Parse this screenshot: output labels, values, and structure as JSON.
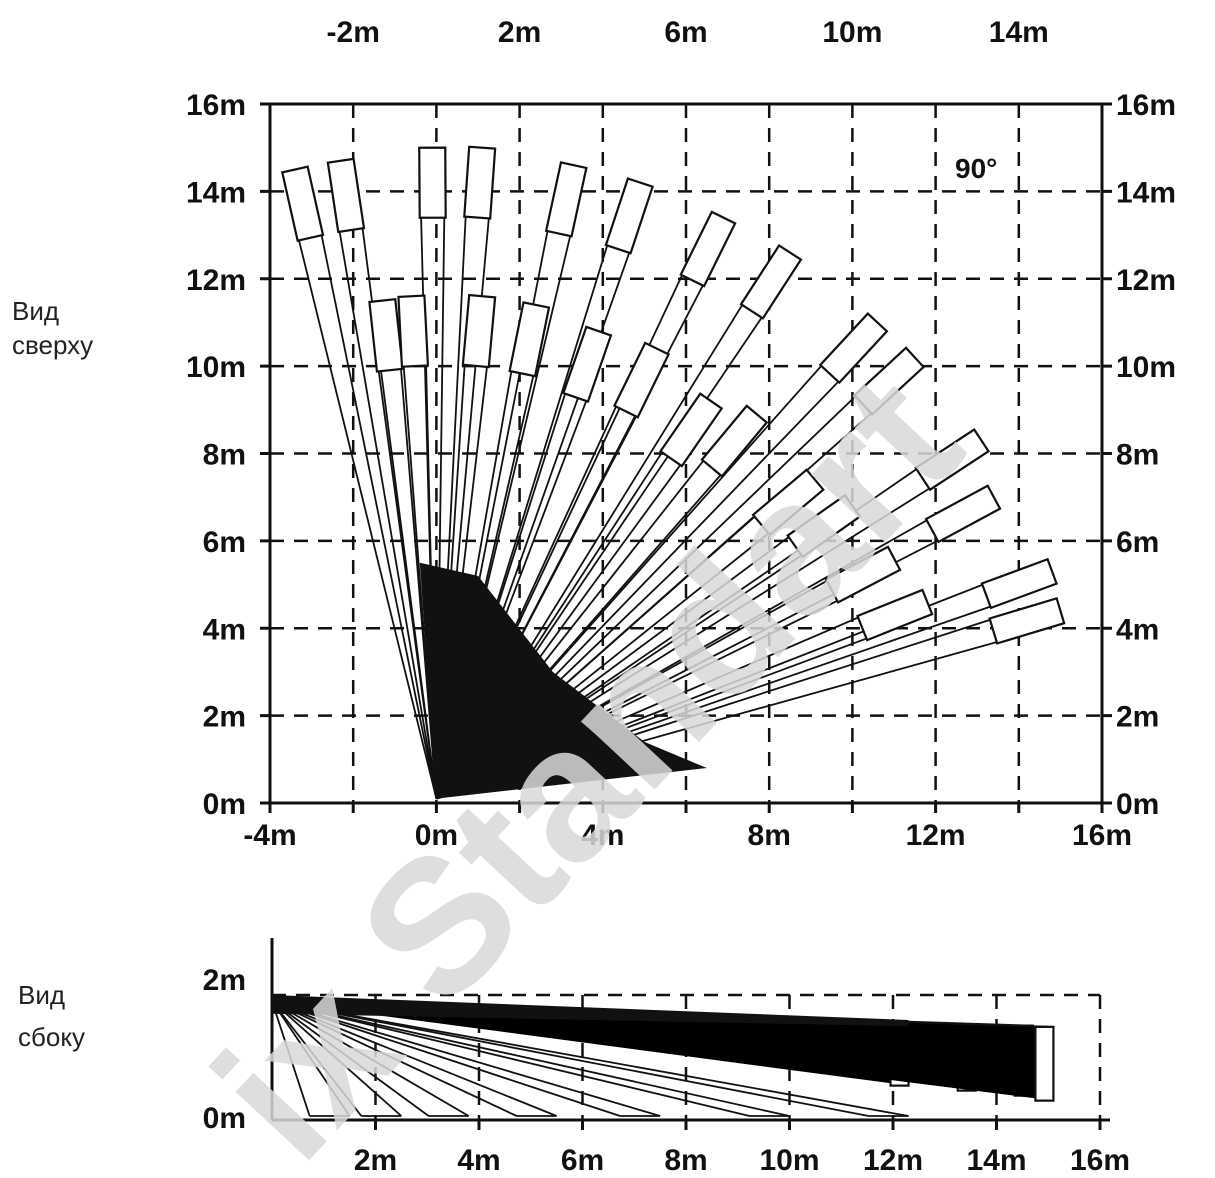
{
  "labels": {
    "top_view": [
      "Вид",
      "сверху"
    ],
    "side_view": [
      "Вид",
      "сбоку"
    ],
    "angle": "90°",
    "watermark": "ix Standart"
  },
  "top_view": {
    "x_ticks_bottom": [
      "-4m",
      "0m",
      "4m",
      "8m",
      "12m",
      "16m"
    ],
    "x_ticks_top": [
      "-2m",
      "2m",
      "6m",
      "10m",
      "14m"
    ],
    "y_ticks": [
      "0m",
      "2m",
      "4m",
      "6m",
      "8m",
      "10m",
      "12m",
      "14m",
      "16m"
    ],
    "range": {
      "x": [
        -4,
        16
      ],
      "y": [
        0,
        16
      ]
    },
    "beam_ends": [
      [
        -3.4,
        14.5
      ],
      [
        -2.3,
        14.7
      ],
      [
        -0.1,
        15.0
      ],
      [
        1.1,
        15.0
      ],
      [
        3.3,
        14.6
      ],
      [
        4.9,
        14.2
      ],
      [
        6.9,
        13.4
      ],
      [
        8.5,
        12.6
      ],
      [
        10.6,
        11.0
      ],
      [
        11.5,
        10.2
      ],
      [
        13.1,
        8.3
      ],
      [
        13.4,
        7.0
      ],
      [
        14.8,
        5.3
      ],
      [
        15.0,
        4.4
      ],
      [
        -1.3,
        11.5
      ],
      [
        -0.6,
        11.6
      ],
      [
        1.1,
        11.6
      ],
      [
        2.4,
        11.4
      ],
      [
        3.9,
        10.8
      ],
      [
        5.3,
        10.4
      ],
      [
        6.6,
        9.2
      ],
      [
        7.7,
        8.9
      ],
      [
        9.1,
        7.4
      ],
      [
        10.0,
        6.8
      ],
      [
        11.0,
        5.6
      ],
      [
        11.8,
        4.6
      ]
    ]
  },
  "side_view": {
    "x_ticks": [
      "2m",
      "4m",
      "6m",
      "8m",
      "10m",
      "12m",
      "14m",
      "16m"
    ],
    "y_ticks": [
      "0m",
      "2m"
    ],
    "range": {
      "x": [
        0,
        16
      ],
      "y": [
        0,
        2
      ]
    },
    "long_beams": [
      12.3,
      13.6,
      14.7,
      15.1
    ],
    "short_beams": [
      1.5,
      2.5,
      3.8,
      5.5,
      7.5,
      10.0,
      12.3
    ]
  }
}
